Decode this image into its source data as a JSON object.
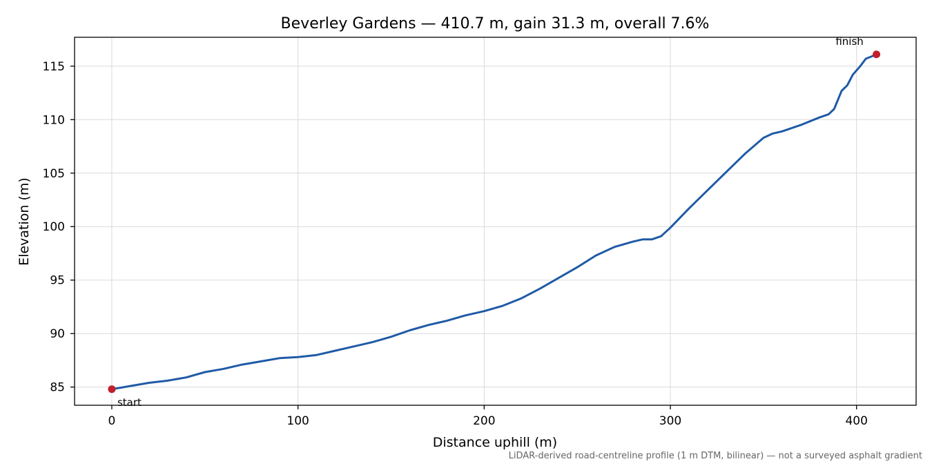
{
  "chart_data": {
    "type": "line",
    "title": "Beverley Gardens — 410.7 m, gain 31.3 m, overall 7.6%",
    "xlabel": "Distance uphill (m)",
    "ylabel": "Elevation (m)",
    "xlim": [
      -20,
      432
    ],
    "ylim": [
      83.3,
      117.7
    ],
    "xticks": [
      0,
      100,
      200,
      300,
      400
    ],
    "yticks": [
      85,
      90,
      95,
      100,
      105,
      110,
      115
    ],
    "grid": true,
    "line_color": "#1f5aa6",
    "marker_color": "#c0202b",
    "series": [
      {
        "x": [
          0,
          10,
          20,
          30,
          40,
          50,
          60,
          70,
          80,
          90,
          100,
          110,
          120,
          130,
          140,
          150,
          160,
          170,
          180,
          190,
          200,
          210,
          220,
          230,
          240,
          250,
          260,
          270,
          280,
          285,
          290,
          295,
          300,
          310,
          320,
          330,
          340,
          350,
          355,
          360,
          370,
          380,
          385,
          388,
          392,
          395,
          398,
          400,
          402,
          405,
          408,
          410.7
        ],
        "y": [
          84.8,
          85.1,
          85.4,
          85.6,
          85.9,
          86.4,
          86.7,
          87.1,
          87.4,
          87.7,
          87.8,
          88.0,
          88.4,
          88.8,
          89.2,
          89.7,
          90.3,
          90.8,
          91.2,
          91.7,
          92.1,
          92.6,
          93.3,
          94.2,
          95.2,
          96.2,
          97.3,
          98.1,
          98.6,
          98.8,
          98.8,
          99.1,
          99.9,
          101.7,
          103.4,
          105.1,
          106.8,
          108.3,
          108.7,
          108.9,
          109.5,
          110.2,
          110.5,
          111.0,
          112.7,
          113.2,
          114.2,
          114.6,
          115.0,
          115.7,
          115.9,
          116.1
        ]
      }
    ],
    "annotations": {
      "start": {
        "label": "start",
        "x": 0,
        "y": 84.8
      },
      "finish": {
        "label": "finish",
        "x": 410.7,
        "y": 116.1
      }
    },
    "footnote": "LiDAR-derived road-centreline profile (1 m DTM, bilinear) — not a surveyed asphalt gradient"
  }
}
